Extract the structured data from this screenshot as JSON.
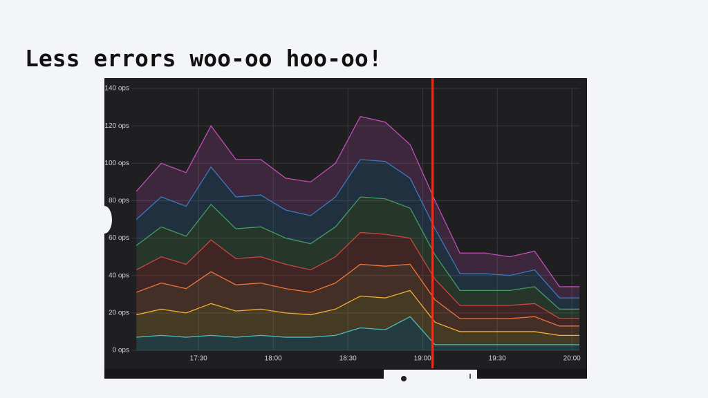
{
  "chart_data": {
    "type": "stacked-area",
    "title": "Less errors woo-oo hoo-oo!",
    "x": [
      "17:05",
      "17:15",
      "17:25",
      "17:35",
      "17:45",
      "17:55",
      "18:05",
      "18:15",
      "18:25",
      "18:35",
      "18:45",
      "18:55",
      "19:05",
      "19:15",
      "19:25",
      "19:35",
      "19:45",
      "19:55",
      "20:03"
    ],
    "xlim": [
      "17:03",
      "20:03"
    ],
    "xticks": [
      "17:30",
      "18:00",
      "18:30",
      "19:00",
      "19:30",
      "20:00"
    ],
    "ylim": [
      0,
      140
    ],
    "yticks": [
      {
        "value": 0,
        "label": "0 ops"
      },
      {
        "value": 20,
        "label": "20 ops"
      },
      {
        "value": 40,
        "label": "40 ops"
      },
      {
        "value": 60,
        "label": "60 ops"
      },
      {
        "value": 80,
        "label": "80 ops"
      },
      {
        "value": 100,
        "label": "100 ops"
      },
      {
        "value": 120,
        "label": "120 ops"
      },
      {
        "value": 140,
        "label": "140 ops"
      }
    ],
    "grid": true,
    "marker_x": "19:04",
    "marker_color": "#e8321e",
    "series": [
      {
        "color": "#3cbfc8",
        "values": [
          7,
          8,
          7,
          8,
          7,
          8,
          7,
          7,
          8,
          12,
          11,
          18,
          3,
          3,
          3,
          3,
          3,
          3,
          3
        ]
      },
      {
        "color": "#f2b632",
        "values": [
          12,
          14,
          13,
          17,
          14,
          14,
          13,
          12,
          14,
          17,
          17,
          14,
          12,
          7,
          7,
          7,
          7,
          5,
          5
        ]
      },
      {
        "color": "#f07c3c",
        "values": [
          12,
          14,
          13,
          17,
          14,
          14,
          13,
          12,
          14,
          17,
          17,
          14,
          12,
          7,
          7,
          7,
          8,
          5,
          5
        ]
      },
      {
        "color": "#d8403a",
        "values": [
          12,
          14,
          13,
          17,
          14,
          14,
          13,
          12,
          14,
          17,
          17,
          14,
          11,
          7,
          7,
          7,
          7,
          4,
          4
        ]
      },
      {
        "color": "#49a05a",
        "values": [
          13,
          16,
          15,
          19,
          16,
          16,
          14,
          14,
          16,
          19,
          19,
          16,
          13,
          8,
          8,
          8,
          9,
          5,
          5
        ]
      },
      {
        "color": "#2f7fc2",
        "values": [
          14,
          16,
          16,
          20,
          17,
          17,
          15,
          15,
          16,
          20,
          20,
          16,
          14,
          9,
          9,
          8,
          9,
          6,
          6
        ]
      },
      {
        "color": "#c04fb6",
        "values": [
          15,
          18,
          18,
          22,
          20,
          19,
          17,
          18,
          18,
          23,
          21,
          18,
          15,
          11,
          11,
          10,
          10,
          6,
          6
        ]
      }
    ]
  }
}
